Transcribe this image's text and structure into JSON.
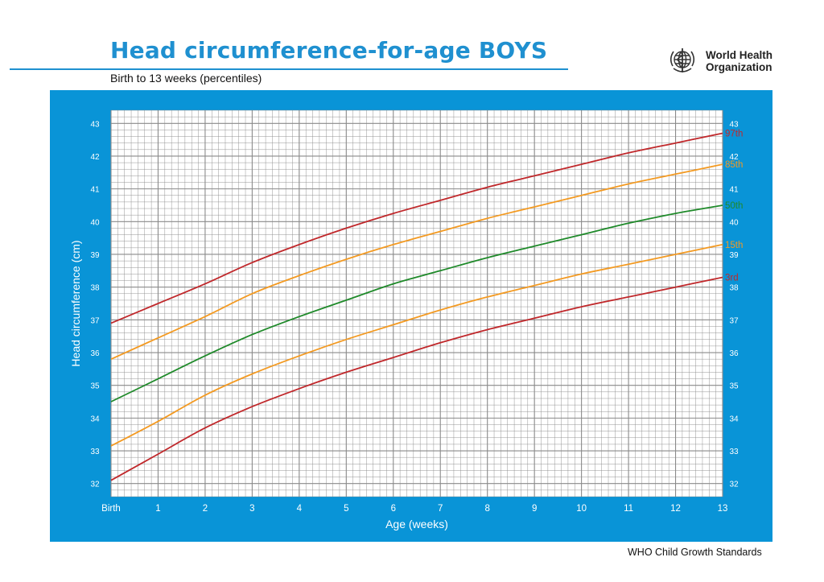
{
  "header": {
    "title": "Head circumference-for-age  BOYS",
    "subtitle": "Birth to 13 weeks (percentiles)",
    "org_line1": "World Health",
    "org_line2": "Organization"
  },
  "footer": {
    "text": "WHO Child Growth Standards"
  },
  "colors": {
    "panel": "#0994d7",
    "grid": "#8a8a8a",
    "red": "#c0282b",
    "orange": "#f39a22",
    "green": "#1f8a2a"
  },
  "chart_data": {
    "type": "line",
    "title": "Head circumference-for-age  BOYS",
    "subtitle": "Birth to 13 weeks (percentiles)",
    "xlabel": "Age (weeks)",
    "ylabel": "Head circumference (cm)",
    "xlim": [
      0,
      13
    ],
    "ylim": [
      31.6,
      43.4
    ],
    "x_ticks": [
      {
        "value": 0,
        "label": "Birth"
      },
      {
        "value": 1,
        "label": "1"
      },
      {
        "value": 2,
        "label": "2"
      },
      {
        "value": 3,
        "label": "3"
      },
      {
        "value": 4,
        "label": "4"
      },
      {
        "value": 5,
        "label": "5"
      },
      {
        "value": 6,
        "label": "6"
      },
      {
        "value": 7,
        "label": "7"
      },
      {
        "value": 8,
        "label": "8"
      },
      {
        "value": 9,
        "label": "9"
      },
      {
        "value": 10,
        "label": "10"
      },
      {
        "value": 11,
        "label": "11"
      },
      {
        "value": 12,
        "label": "12"
      },
      {
        "value": 13,
        "label": "13"
      }
    ],
    "y_ticks": [
      "32",
      "33",
      "34",
      "35",
      "36",
      "37",
      "38",
      "39",
      "40",
      "41",
      "42",
      "43"
    ],
    "grid": true,
    "x": [
      0,
      1,
      2,
      3,
      4,
      5,
      6,
      7,
      8,
      9,
      10,
      11,
      12,
      13
    ],
    "series": [
      {
        "name": "97th",
        "color": "#c0282b",
        "values": [
          36.9,
          37.5,
          38.1,
          38.75,
          39.3,
          39.8,
          40.25,
          40.65,
          41.05,
          41.4,
          41.75,
          42.1,
          42.4,
          42.7
        ]
      },
      {
        "name": "85th",
        "color": "#f39a22",
        "values": [
          35.8,
          36.45,
          37.1,
          37.8,
          38.35,
          38.85,
          39.3,
          39.7,
          40.1,
          40.45,
          40.8,
          41.15,
          41.45,
          41.75
        ]
      },
      {
        "name": "50th",
        "color": "#1f8a2a",
        "values": [
          34.5,
          35.2,
          35.9,
          36.55,
          37.1,
          37.6,
          38.1,
          38.5,
          38.9,
          39.25,
          39.6,
          39.95,
          40.25,
          40.5
        ]
      },
      {
        "name": "15th",
        "color": "#f39a22",
        "values": [
          33.15,
          33.9,
          34.7,
          35.35,
          35.9,
          36.4,
          36.85,
          37.3,
          37.7,
          38.05,
          38.4,
          38.7,
          39.0,
          39.3
        ]
      },
      {
        "name": "3rd",
        "color": "#c0282b",
        "values": [
          32.1,
          32.9,
          33.7,
          34.35,
          34.9,
          35.4,
          35.85,
          36.3,
          36.7,
          37.05,
          37.4,
          37.7,
          38.0,
          38.3
        ]
      }
    ]
  }
}
